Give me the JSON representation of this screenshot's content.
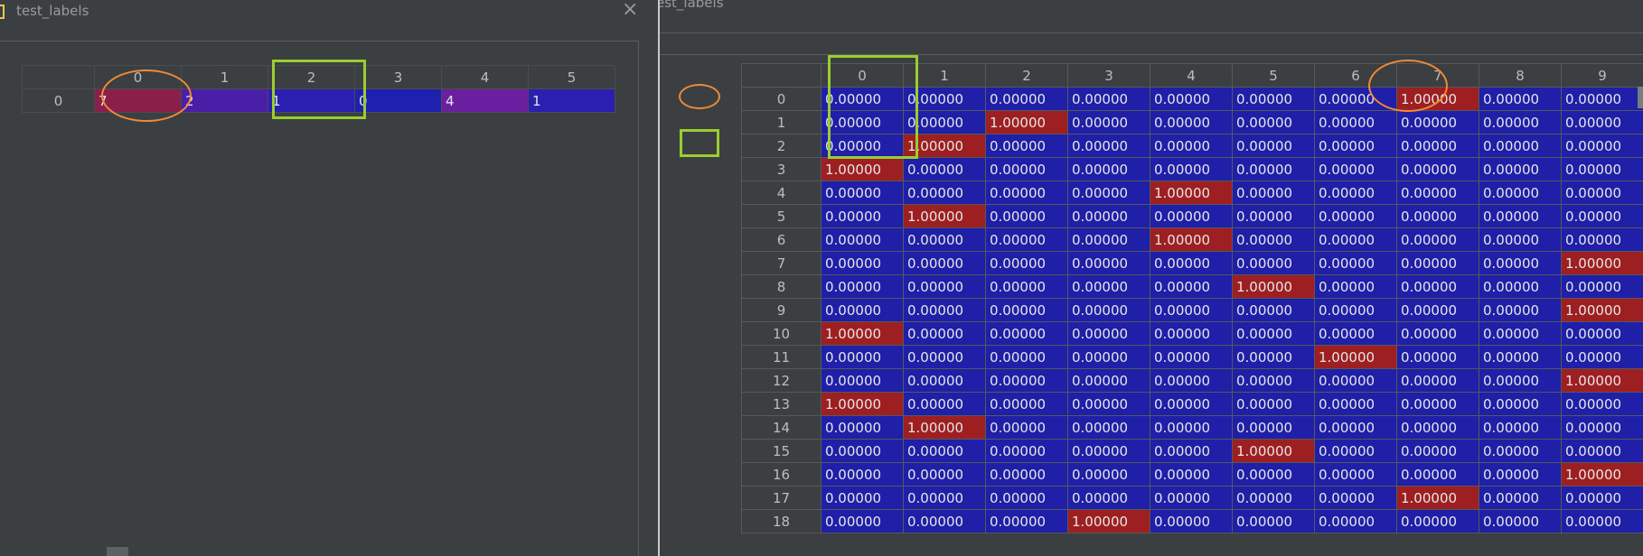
{
  "left_window": {
    "title": "test_labels",
    "col_headers": [
      "0",
      "1",
      "2",
      "3",
      "4",
      "5"
    ],
    "rows": [
      {
        "index": "0",
        "cells": [
          "7",
          "2",
          "1",
          "0",
          "4",
          "1"
        ]
      }
    ]
  },
  "right_window": {
    "title": "est_labels",
    "col_headers": [
      "0",
      "1",
      "2",
      "3",
      "4",
      "5",
      "6",
      "7",
      "8",
      "9"
    ],
    "rows": [
      {
        "index": "0",
        "hot": 7
      },
      {
        "index": "1",
        "hot": 2
      },
      {
        "index": "2",
        "hot": 1
      },
      {
        "index": "3",
        "hot": 0
      },
      {
        "index": "4",
        "hot": 4
      },
      {
        "index": "5",
        "hot": 1
      },
      {
        "index": "6",
        "hot": 4
      },
      {
        "index": "7",
        "hot": 9
      },
      {
        "index": "8",
        "hot": 5
      },
      {
        "index": "9",
        "hot": 9
      },
      {
        "index": "10",
        "hot": 0
      },
      {
        "index": "11",
        "hot": 6
      },
      {
        "index": "12",
        "hot": 9
      },
      {
        "index": "13",
        "hot": 0
      },
      {
        "index": "14",
        "hot": 1
      },
      {
        "index": "15",
        "hot": 5
      },
      {
        "index": "16",
        "hot": 9
      },
      {
        "index": "17",
        "hot": 7
      },
      {
        "index": "18",
        "hot": 3
      }
    ],
    "one_value": "1.00000",
    "zero_value": "0.00000"
  },
  "colors": {
    "cell_blue": "#1f1fa8",
    "cell_red": "#9e1f21",
    "annotation_orange": "#f08a36",
    "annotation_green": "#9acd32"
  }
}
